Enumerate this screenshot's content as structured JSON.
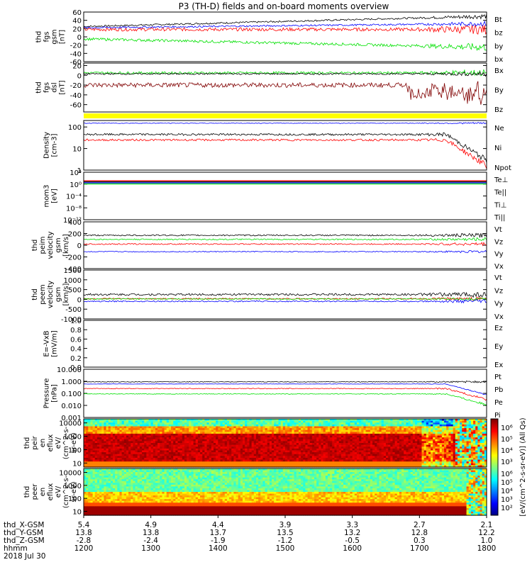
{
  "title": "P3 (TH-D) fields and on-board moments overview",
  "colors": {
    "black": "#000000",
    "red": "#ff0000",
    "green": "#00e000",
    "blue": "#0000ff",
    "darkred": "#800000",
    "yellow": "#ffff00"
  },
  "chart_data": [
    {
      "type": "line",
      "id": "fgs",
      "ylabel_lines": [
        "thd",
        "fgs",
        "gsm",
        "[nT]"
      ],
      "ylim": [
        -60,
        60
      ],
      "ticks": [
        -60,
        -40,
        -20,
        0,
        20,
        40,
        60
      ],
      "series": [
        {
          "name": "Bt",
          "color": "black",
          "base": 25,
          "amp": 5
        },
        {
          "name": "bz",
          "color": "red",
          "base": 18,
          "amp": 10
        },
        {
          "name": "by",
          "color": "green",
          "base": -5,
          "amp": 8
        },
        {
          "name": "bx",
          "color": "blue",
          "base": 22,
          "amp": 5
        }
      ]
    },
    {
      "type": "line",
      "id": "fgs-dsl",
      "ylabel_lines": [
        "thd",
        "fgs",
        "dsl",
        "[nT]"
      ],
      "ylim": [
        -75,
        25
      ],
      "ticks": [
        -60,
        -40,
        -20,
        0,
        20
      ],
      "series": [
        {
          "name": "Bx",
          "color": "green",
          "base": 5,
          "amp": 6
        },
        {
          "name": "By",
          "color": "black",
          "base": 3,
          "amp": 4
        },
        {
          "name": "Bz",
          "color": "darkred",
          "base": -20,
          "amp": 12
        }
      ]
    },
    {
      "type": "line",
      "id": "density",
      "log": true,
      "ylabel_lines": [
        "Density",
        "[cm-3]"
      ],
      "ylim": [
        1,
        200
      ],
      "ticks": [
        1,
        10,
        100
      ],
      "series": [
        {
          "name": "Ne",
          "color": "red",
          "base": 25,
          "amp": 0.3
        },
        {
          "name": "Ni",
          "color": "black",
          "base": 45,
          "amp": 0.3
        },
        {
          "name": "Npot",
          "color": "blue",
          "base": 150,
          "amp": 0.1
        }
      ]
    },
    {
      "type": "line",
      "id": "temp",
      "log": true,
      "ylabel_lines": [
        "mom3",
        "[eV]"
      ],
      "ylim": [
        1e-12,
        10000.0
      ],
      "ticks": [
        "10⁴",
        "10⁰",
        "10⁻⁴",
        "10⁻⁸",
        "10⁻¹²"
      ],
      "series": [
        {
          "name": "Te⊥",
          "color": "red"
        },
        {
          "name": "Te||",
          "color": "black"
        },
        {
          "name": "Ti⊥",
          "color": "blue"
        },
        {
          "name": "Ti||",
          "color": "green"
        }
      ]
    },
    {
      "type": "line",
      "id": "peim",
      "ylabel_lines": [
        "thd",
        "peim",
        "velocity",
        "gsm",
        "[km/s]"
      ],
      "ylim": [
        -400,
        400
      ],
      "ticks": [
        -400,
        -200,
        0,
        200,
        400
      ],
      "series": [
        {
          "name": "Vt",
          "color": "black",
          "base": 170,
          "amp": 30
        },
        {
          "name": "Vz",
          "color": "red",
          "base": 20,
          "amp": 25
        },
        {
          "name": "Vy",
          "color": "green",
          "base": 100,
          "amp": 25
        },
        {
          "name": "Vx",
          "color": "blue",
          "base": -110,
          "amp": 20
        }
      ]
    },
    {
      "type": "line",
      "id": "peem",
      "ylabel_lines": [
        "thd",
        "peem",
        "velocity",
        "gsm",
        "[km/s]"
      ],
      "ylim": [
        -1000,
        1500
      ],
      "ticks": [
        -1000,
        -500,
        0,
        500,
        1000,
        1500
      ],
      "series": [
        {
          "name": "Vt",
          "color": "black",
          "base": 250,
          "amp": 130
        },
        {
          "name": "Vz",
          "color": "red",
          "base": 30,
          "amp": 80
        },
        {
          "name": "Vy",
          "color": "green",
          "base": 20,
          "amp": 60
        },
        {
          "name": "Vx",
          "color": "blue",
          "base": -100,
          "amp": 80
        }
      ]
    },
    {
      "type": "line",
      "id": "efield",
      "ylabel_lines": [
        "E=-VxB",
        "[mV/m]"
      ],
      "ylim": [
        0,
        1
      ],
      "ticks": [
        0.0,
        0.2,
        0.4,
        0.6,
        0.8,
        1.0
      ],
      "series": [
        {
          "name": "Ez",
          "color": "red"
        },
        {
          "name": "Ey",
          "color": "green"
        },
        {
          "name": "Ex",
          "color": "blue"
        }
      ]
    },
    {
      "type": "line",
      "id": "pressure",
      "log": true,
      "ylabel_lines": [
        "Pressure",
        "[nPa]"
      ],
      "ylim": [
        0.001,
        10
      ],
      "ticks": [
        "10.000",
        "1.000",
        "0.100",
        "0.010",
        "0.001"
      ],
      "series": [
        {
          "name": "Pt",
          "color": "black",
          "base": 0.9,
          "amp": 0.2
        },
        {
          "name": "Pb",
          "color": "red",
          "base": 0.25,
          "amp": 0.2
        },
        {
          "name": "Pe",
          "color": "green",
          "base": 0.09,
          "amp": 0.2
        },
        {
          "name": "Pi",
          "color": "blue",
          "base": 0.6,
          "amp": 0.1
        }
      ]
    },
    {
      "type": "heatmap",
      "id": "peir",
      "ylabel_lines": [
        "thd",
        "peir",
        "en",
        "eflux",
        "eV/",
        "(cm^2-s-",
        "sr-eV)"
      ],
      "ticks": [
        10,
        100,
        1000,
        10000
      ]
    },
    {
      "type": "heatmap",
      "id": "peer",
      "ylabel_lines": [
        "thd",
        "peer",
        "en",
        "eflux",
        "eV/",
        "(cm^2-s-",
        "sr-eV)"
      ],
      "ticks": [
        10,
        100,
        1000,
        10000
      ]
    }
  ],
  "colorbar": {
    "label": "[eV/(cm^2-s-sr-eV)] (All Qs)",
    "top_ticks": [
      "10⁶",
      "10⁵",
      "10⁴",
      "10³"
    ],
    "bottom_ticks": [
      "10⁶",
      "10⁵",
      "10⁴",
      "10³",
      "10²"
    ]
  },
  "footer": {
    "rows": [
      {
        "label": "thd_X-GSM",
        "values": [
          "5.4",
          "4.9",
          "4.4",
          "3.9",
          "3.3",
          "2.7",
          "2.1"
        ]
      },
      {
        "label": "thd_Y-GSM",
        "values": [
          "13.8",
          "13.8",
          "13.7",
          "13.5",
          "13.2",
          "12.8",
          "12.2"
        ]
      },
      {
        "label": "thd_Z-GSM",
        "values": [
          "-2.8",
          "-2.4",
          "-1.9",
          "-1.2",
          "-0.5",
          "0.3",
          "1.0"
        ]
      },
      {
        "label": "hhmm",
        "values": [
          "1200",
          "1300",
          "1400",
          "1500",
          "1600",
          "1700",
          "1800"
        ]
      }
    ],
    "date": "2018 Jul 30"
  }
}
